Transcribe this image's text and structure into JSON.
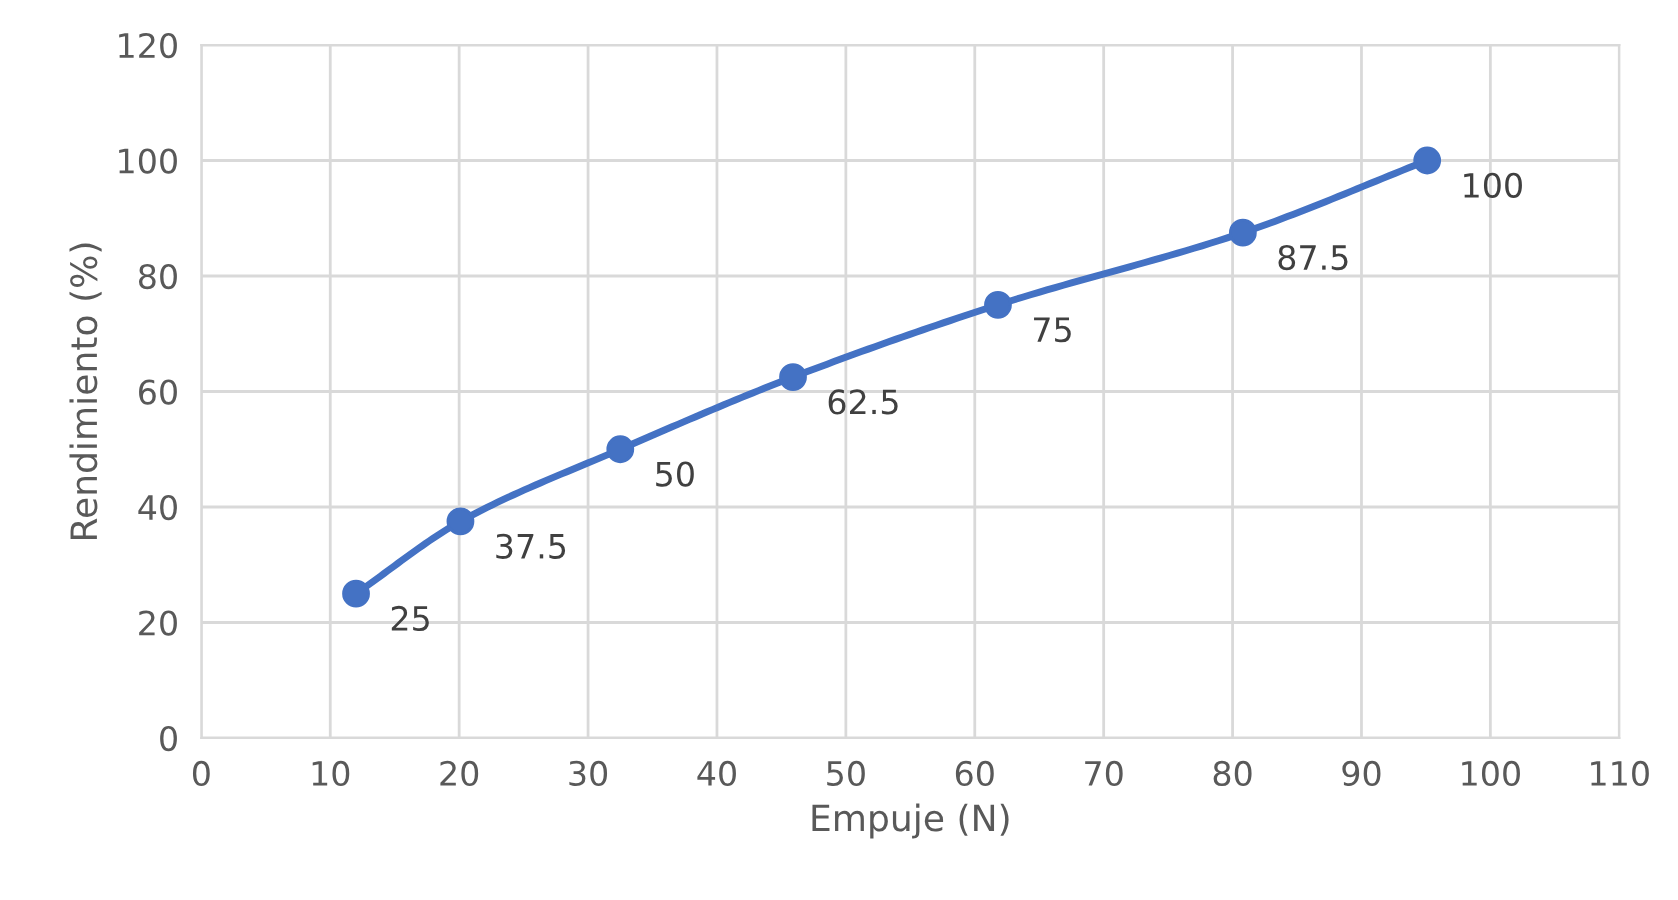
{
  "chart_data": {
    "type": "line",
    "xlabel": "Empuje (N)",
    "ylabel": "Rendimiento (%)",
    "x": [
      12.0,
      20.1,
      32.5,
      45.9,
      61.8,
      80.8,
      95.1
    ],
    "series": [
      {
        "color": "#4472c4",
        "values": [
          25,
          37.5,
          50,
          62.5,
          75,
          87.5,
          100
        ]
      }
    ],
    "xlim": [
      0,
      110
    ],
    "xticks": [
      0,
      10,
      20,
      30,
      40,
      50,
      60,
      70,
      80,
      90,
      100,
      110
    ],
    "ylim": [
      0,
      120
    ],
    "yticks": [
      0,
      20,
      40,
      60,
      80,
      100,
      120
    ],
    "grid": true,
    "marker": "circle",
    "line_style": "solid",
    "data_labels": true
  }
}
